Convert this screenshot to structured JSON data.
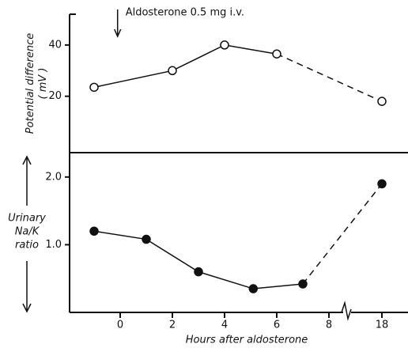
{
  "chart_data": [
    {
      "type": "line",
      "y_label": [
        "Potential difference",
        "( mV )"
      ],
      "annotation": "Aldosterone 0.5 mg i.v.",
      "annotation_x": -0.1,
      "x": [
        -1,
        2,
        4,
        6,
        18
      ],
      "values": [
        23.5,
        30,
        40,
        36.5,
        18
      ],
      "marker": "open",
      "dashed_from_index": 3,
      "color": "#111",
      "ylim": [
        -2,
        52
      ],
      "yticks": [
        20,
        40
      ],
      "x_break": [
        8,
        18
      ]
    },
    {
      "type": "line",
      "y_label": [
        "Urinary",
        "Na/K",
        "ratio"
      ],
      "x_label": "Hours after aldosterone",
      "x": [
        -1,
        1,
        3,
        5.1,
        7,
        18
      ],
      "values": [
        1.2,
        1.08,
        0.6,
        0.35,
        0.42,
        1.9
      ],
      "marker": "filled",
      "dashed_from_index": 4,
      "color": "#111",
      "ylim": [
        0,
        2.36
      ],
      "yticks": [
        {
          "value": 1,
          "label": "1.0"
        },
        {
          "value": 2,
          "label": "2.0"
        }
      ],
      "xticks": [
        0,
        2,
        4,
        6,
        8,
        18
      ],
      "x_break": [
        8,
        18
      ]
    }
  ]
}
